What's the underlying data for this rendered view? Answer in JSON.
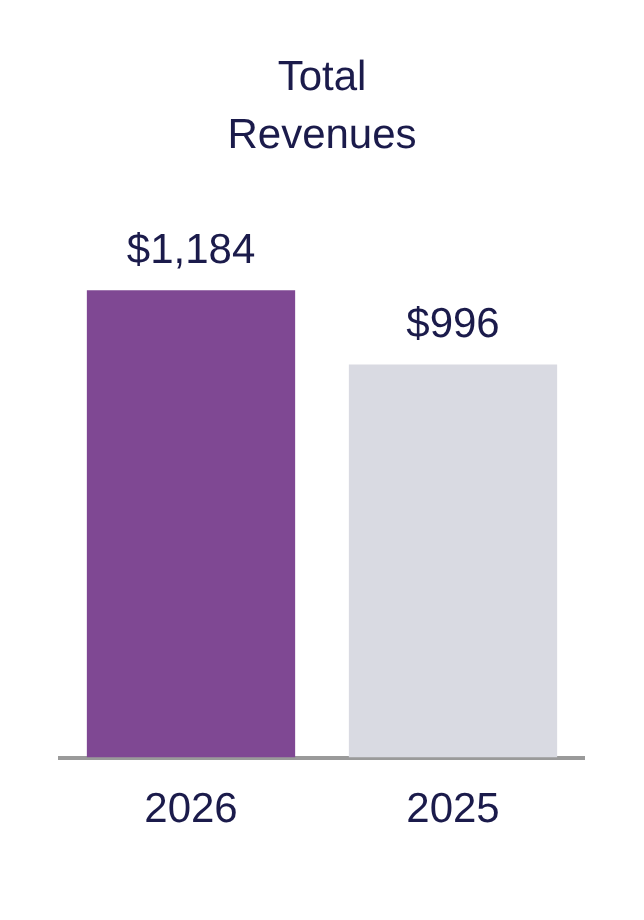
{
  "chart_data": {
    "type": "bar",
    "title": "Total Revenues",
    "categories": [
      "2026",
      "2025"
    ],
    "values": [
      1184,
      996
    ],
    "colors": [
      "#7f4893",
      "#d9dae2"
    ],
    "value_labels": [
      "$1,184",
      "$996"
    ],
    "grid": false,
    "legend": false
  }
}
